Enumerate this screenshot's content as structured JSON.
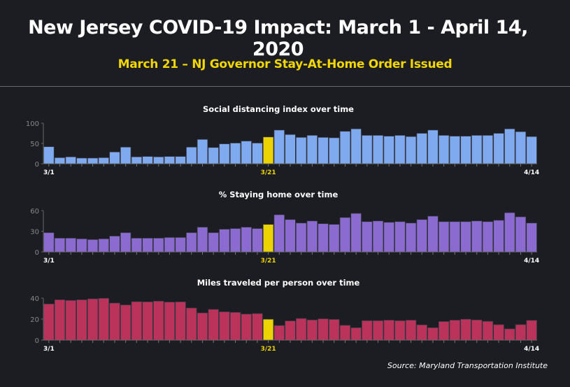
{
  "title": "New Jersey COVID-19 Impact:  March 1 - April 14, 2020",
  "subtitle": "March 21 – NJ Governor Stay-At-Home Order Issued",
  "source": "Source: Maryland Transportation Institute",
  "colors": {
    "highlight": "#ecd400",
    "social": "#80aaf0",
    "home": "#8b6bd0",
    "miles": "#bb335a",
    "background": "#1c1d22"
  },
  "chart_data": [
    {
      "type": "bar",
      "title": "Social distancing index over time",
      "x_tick_labels": [
        "3/1",
        "3/21",
        "4/14"
      ],
      "highlight_category": "3/21",
      "ylim": [
        0,
        100
      ],
      "yticks": [
        0,
        50,
        100
      ],
      "values": [
        42,
        15,
        17,
        14,
        14,
        15,
        29,
        41,
        17,
        18,
        17,
        18,
        18,
        41,
        60,
        40,
        49,
        51,
        56,
        51,
        66,
        83,
        72,
        65,
        70,
        65,
        64,
        80,
        86,
        70,
        70,
        68,
        70,
        67,
        75,
        83,
        70,
        68,
        68,
        70,
        70,
        75,
        86,
        79,
        67
      ]
    },
    {
      "type": "bar",
      "title": "% Staying home over time",
      "x_tick_labels": [
        "3/1",
        "3/21",
        "4/14"
      ],
      "highlight_category": "3/21",
      "ylim": [
        0,
        60
      ],
      "yticks": [
        0,
        30,
        60
      ],
      "values": [
        28,
        20,
        20,
        19,
        18,
        19,
        23,
        28,
        20,
        20,
        20,
        21,
        21,
        28,
        36,
        28,
        33,
        34,
        36,
        34,
        40,
        54,
        47,
        42,
        45,
        41,
        40,
        50,
        56,
        44,
        45,
        43,
        44,
        42,
        47,
        52,
        44,
        44,
        44,
        45,
        44,
        46,
        57,
        51,
        42
      ]
    },
    {
      "type": "bar",
      "title": "Miles traveled per person over time",
      "x_tick_labels": [
        "3/1",
        "3/21",
        "4/14"
      ],
      "highlight_category": "3/21",
      "ylim": [
        0,
        40
      ],
      "yticks": [
        0,
        20,
        40
      ],
      "values": [
        34.4,
        38.4,
        37.8,
        38.4,
        39.3,
        39.8,
        35.3,
        33.5,
        36.6,
        36.4,
        37.1,
        36.2,
        36.4,
        30.6,
        25.9,
        29.3,
        27,
        26.4,
        24.8,
        25.3,
        19.9,
        13.9,
        18.3,
        20.6,
        19.2,
        20.3,
        19.7,
        14.1,
        11.8,
        18.5,
        18.5,
        19,
        18.5,
        19,
        14.5,
        11.8,
        17.7,
        19,
        19.9,
        19.2,
        17.9,
        14.7,
        10.7,
        14.7,
        18.8
      ]
    }
  ]
}
